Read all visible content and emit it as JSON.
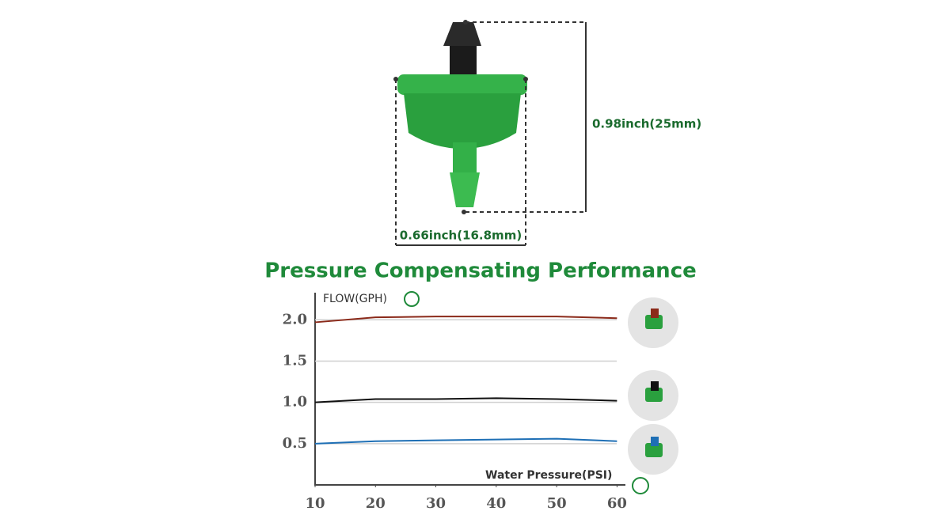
{
  "dimensions": {
    "height": "0.98inch(25mm)",
    "width": "0.66inch(16.8mm)"
  },
  "chart_data": {
    "type": "line",
    "title": "Pressure Compensating Performance",
    "y_label": "FLOW(GPH)",
    "x_label": "Water Pressure(PSI)",
    "x": [
      10,
      20,
      30,
      40,
      50,
      60
    ],
    "series": [
      {
        "color": "#8b2a1a",
        "values": [
          1.97,
          2.03,
          2.04,
          2.04,
          2.04,
          2.02
        ]
      },
      {
        "color": "#111111",
        "values": [
          1.0,
          1.04,
          1.04,
          1.05,
          1.04,
          1.02
        ]
      },
      {
        "color": "#1e6fb5",
        "values": [
          0.5,
          0.53,
          0.54,
          0.55,
          0.56,
          0.53
        ]
      }
    ],
    "xlim": [
      10,
      61
    ],
    "ylim": [
      0,
      2.3
    ],
    "xticks": [
      10,
      20,
      30,
      40,
      50,
      60
    ],
    "yticks": [
      {
        "value": 0.5,
        "label": "0.5"
      },
      {
        "value": 1,
        "label": "1.0"
      },
      1.5,
      {
        "value": 2,
        "label": "2.0"
      }
    ],
    "grid": true
  }
}
